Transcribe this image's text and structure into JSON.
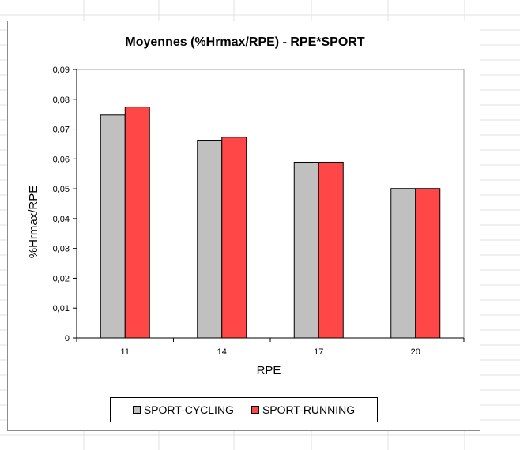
{
  "chart_data": {
    "type": "bar",
    "title": "Moyennes (%Hrmax/RPE) - RPE*SPORT",
    "xlabel": "RPE",
    "ylabel": "%Hrmax/RPE",
    "categories": [
      "11",
      "14",
      "17",
      "20"
    ],
    "series": [
      {
        "name": "SPORT-CYCLING",
        "color": "#c0c0c0",
        "values": [
          0.0747,
          0.0663,
          0.0589,
          0.0501
        ]
      },
      {
        "name": "SPORT-RUNNING",
        "color": "#ff4747",
        "values": [
          0.0774,
          0.0673,
          0.0589,
          0.0501
        ]
      }
    ],
    "ylim": [
      0,
      0.09
    ],
    "y_ticks": [
      "0",
      "0,01",
      "0,02",
      "0,03",
      "0,04",
      "0,05",
      "0,06",
      "0,07",
      "0,08",
      "0,09"
    ],
    "grid": false,
    "legend_position": "bottom"
  }
}
